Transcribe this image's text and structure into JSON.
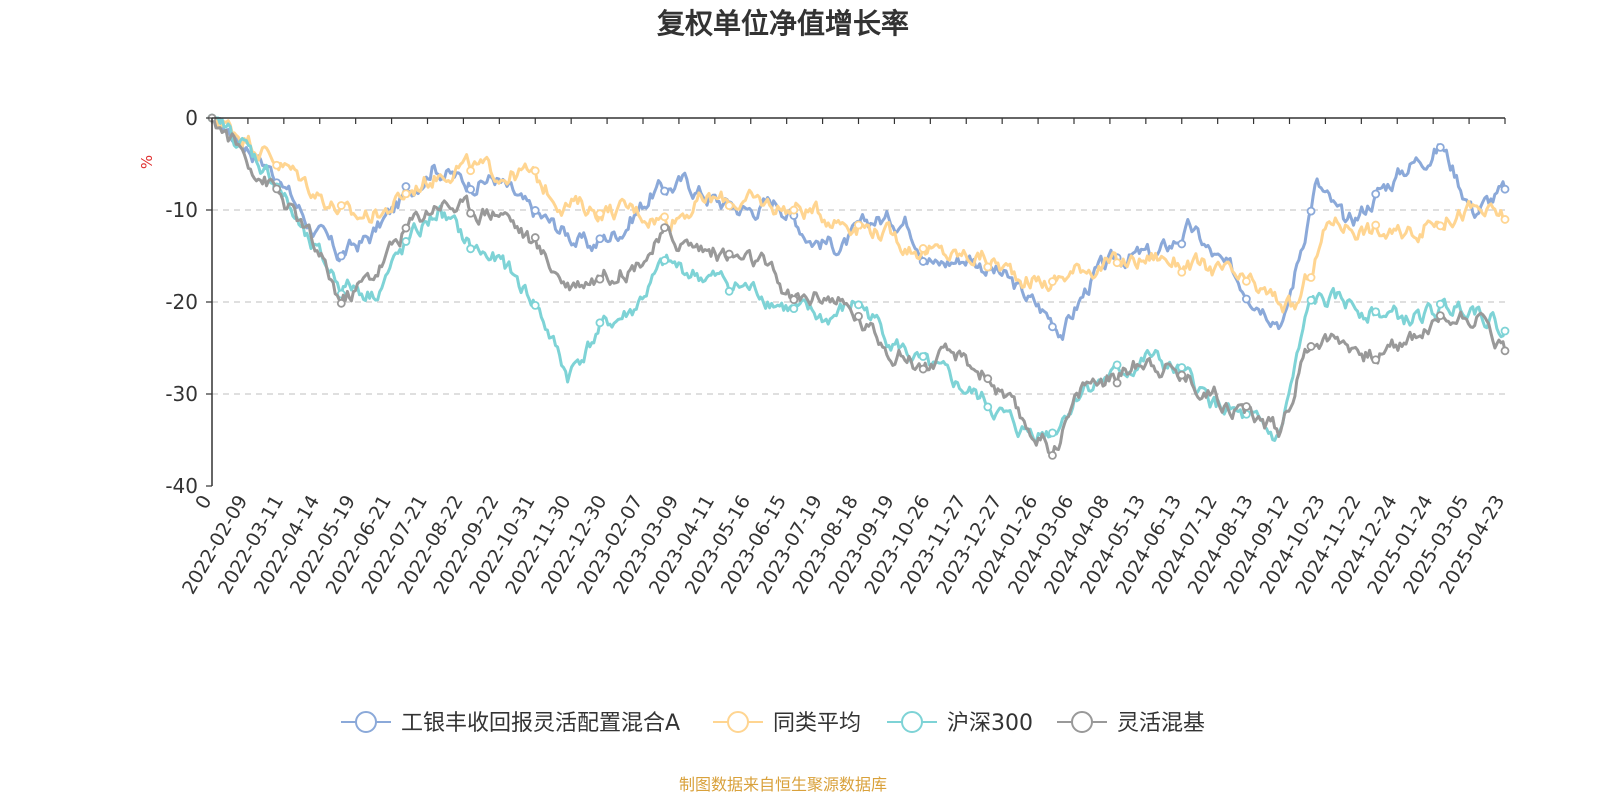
{
  "chart_data": {
    "type": "line",
    "title": "复权单位净值增长率",
    "ylabel": "%",
    "ylim": [
      -40,
      0
    ],
    "yticks": [
      0,
      -10,
      -20,
      -30,
      -40
    ],
    "x_ticks": [
      "0",
      "2022-02-09",
      "2022-03-11",
      "2022-04-14",
      "2022-05-19",
      "2022-06-21",
      "2022-07-21",
      "2022-08-22",
      "2022-09-22",
      "2022-10-31",
      "2022-11-30",
      "2022-12-30",
      "2023-02-07",
      "2023-03-09",
      "2023-04-11",
      "2023-05-16",
      "2023-06-15",
      "2023-07-19",
      "2023-08-18",
      "2023-09-19",
      "2023-10-26",
      "2023-11-27",
      "2023-12-27",
      "2024-01-26",
      "2024-03-06",
      "2024-04-08",
      "2024-05-13",
      "2024-06-13",
      "2024-07-12",
      "2024-08-13",
      "2024-09-12",
      "2024-10-23",
      "2024-11-22",
      "2024-12-24",
      "2025-01-24",
      "2025-03-05",
      "2025-04-23"
    ],
    "grid": true,
    "legend_position": "bottom",
    "source": "制图数据来自恒生聚源数据库",
    "series": [
      {
        "name": "工银丰收回报灵活配置混合A",
        "color": "#8BA9D9",
        "values": [
          0,
          -2.5,
          -6,
          -11,
          -15,
          -13,
          -9,
          -5,
          -7,
          -6.5,
          -10,
          -12,
          -14,
          -12,
          -8,
          -7,
          -9,
          -10,
          -9,
          -13,
          -14,
          -11,
          -11,
          -16,
          -15,
          -17,
          -20,
          -23,
          -17,
          -15,
          -15,
          -12,
          -16,
          -19,
          -22,
          -7,
          -12,
          -8,
          -5,
          -3,
          -10,
          -8
        ]
      },
      {
        "name": "同类平均",
        "color": "#FFD591",
        "values": [
          0,
          -2,
          -5,
          -8,
          -11,
          -10,
          -7,
          -5,
          -6,
          -6,
          -9,
          -10,
          -10,
          -11,
          -9,
          -9,
          -9.5,
          -10,
          -11,
          -12,
          -14,
          -15,
          -15,
          -17,
          -18,
          -16,
          -16,
          -15,
          -16,
          -17,
          -19,
          -21,
          -11,
          -12,
          -13,
          -11,
          -10,
          -11
        ]
      },
      {
        "name": "沪深300",
        "color": "#7ED3D6",
        "values": [
          0,
          -3,
          -7,
          -14,
          -18,
          -19,
          -14,
          -10,
          -14,
          -16,
          -20,
          -28,
          -23,
          -21,
          -16,
          -17,
          -18,
          -19,
          -21,
          -22,
          -20,
          -24,
          -27,
          -29,
          -31,
          -34,
          -34,
          -29,
          -28,
          -26,
          -28,
          -31,
          -33,
          -35,
          -20,
          -20,
          -21,
          -22,
          -21,
          -20,
          -23
        ]
      },
      {
        "name": "灵活混基",
        "color": "#999999",
        "values": [
          0,
          -4,
          -8,
          -13,
          -20,
          -17,
          -12,
          -9,
          -10,
          -10,
          -14,
          -18,
          -17,
          -16,
          -13,
          -14,
          -15,
          -16,
          -20,
          -19,
          -22,
          -25,
          -27,
          -26,
          -28,
          -33,
          -36,
          -29,
          -28,
          -26,
          -28,
          -30,
          -32,
          -34,
          -24,
          -24,
          -26,
          -24,
          -22,
          -21,
          -25
        ]
      }
    ]
  }
}
